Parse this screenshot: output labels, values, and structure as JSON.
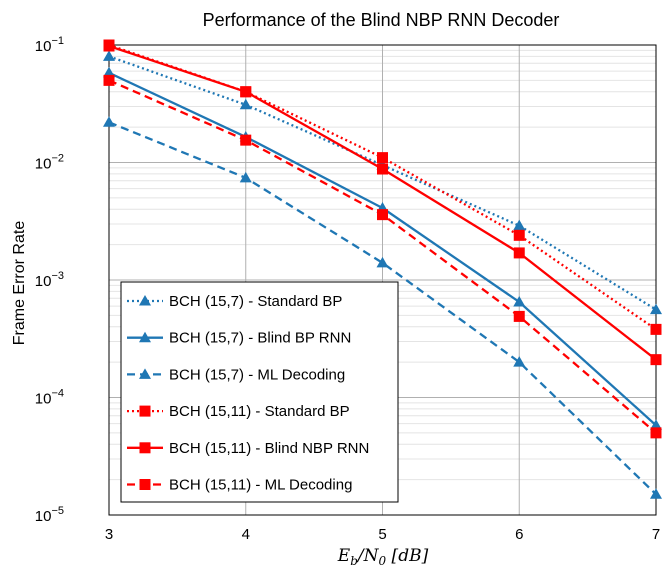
{
  "chart_data": {
    "type": "line",
    "title": "Performance of the Blind NBP RNN Decoder",
    "xlabel_parts": {
      "base": "E",
      "sub": "b",
      "mid": "/N",
      "sub2": "0",
      "unit": " [dB]"
    },
    "ylabel": "Frame Error Rate",
    "x": [
      3,
      4,
      5,
      6,
      7
    ],
    "xlim": [
      3,
      7
    ],
    "x_tick_labels": [
      "3",
      "4",
      "5",
      "6",
      "7"
    ],
    "yscale": "log",
    "ylim": [
      1e-05,
      0.1
    ],
    "y_tick_labels": [
      {
        "base": "10",
        "exp": "−5",
        "value": 1e-05
      },
      {
        "base": "10",
        "exp": "−4",
        "value": 0.0001
      },
      {
        "base": "10",
        "exp": "−3",
        "value": 0.001
      },
      {
        "base": "10",
        "exp": "−2",
        "value": 0.01
      },
      {
        "base": "10",
        "exp": "−1",
        "value": 0.1
      }
    ],
    "grid": true,
    "legend_position": "bottom-left",
    "series": [
      {
        "name": "BCH (15,7) - Standard BP",
        "color": "#1f77b4",
        "dash": "dotted",
        "marker": "triangle",
        "values": [
          0.08,
          0.031,
          0.0095,
          0.0029,
          0.00056
        ]
      },
      {
        "name": "BCH (15,7) - Blind BP RNN",
        "color": "#1f77b4",
        "dash": "solid",
        "marker": "triangle",
        "values": [
          0.058,
          0.0165,
          0.0041,
          0.00065,
          5.8e-05
        ]
      },
      {
        "name": "BCH (15,7) - ML Decoding",
        "color": "#1f77b4",
        "dash": "dashed",
        "marker": "triangle",
        "values": [
          0.022,
          0.0074,
          0.0014,
          0.0002,
          1.5e-05
        ]
      },
      {
        "name": "BCH (15,11) - Standard BP",
        "color": "#ff0000",
        "dash": "dotted",
        "marker": "square",
        "values": [
          0.1,
          0.04,
          0.011,
          0.0024,
          0.00038
        ]
      },
      {
        "name": "BCH (15,11) - Blind NBP RNN",
        "color": "#ff0000",
        "dash": "solid",
        "marker": "square",
        "values": [
          0.098,
          0.04,
          0.0088,
          0.0017,
          0.00021
        ]
      },
      {
        "name": "BCH (15,11) - ML Decoding",
        "color": "#ff0000",
        "dash": "dashed",
        "marker": "square",
        "values": [
          0.05,
          0.0155,
          0.0036,
          0.00049,
          5e-05
        ]
      }
    ]
  }
}
